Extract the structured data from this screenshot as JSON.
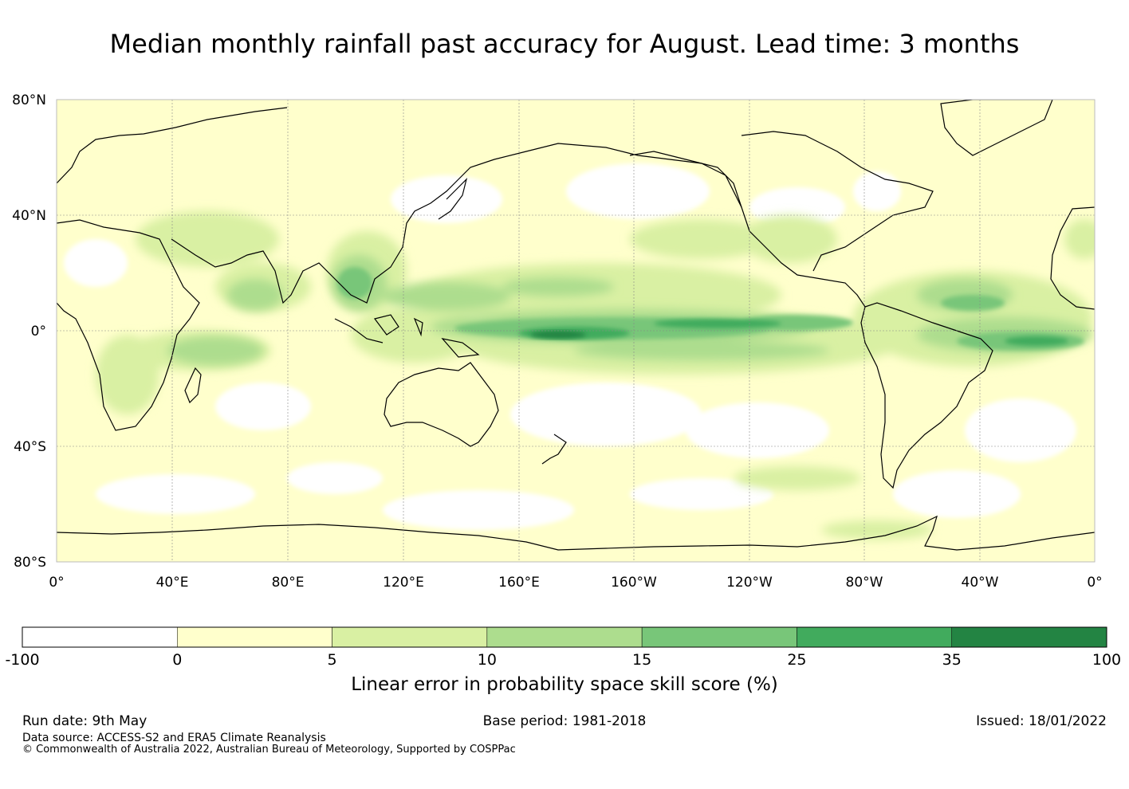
{
  "title": "Median monthly rainfall past accuracy for August. Lead time: 3 months",
  "map": {
    "lat_labels": [
      "80°N",
      "40°N",
      "0°",
      "40°S",
      "80°S"
    ],
    "lon_labels": [
      "0°",
      "40°E",
      "80°E",
      "120°E",
      "160°E",
      "160°W",
      "120°W",
      "80°W",
      "40°W",
      "0°"
    ]
  },
  "colorbar": {
    "title": "Linear error in probability space skill score (%)",
    "ticks": [
      "-100",
      "0",
      "5",
      "10",
      "15",
      "25",
      "35",
      "100"
    ],
    "colors": [
      "#ffffff",
      "#ffffcc",
      "#d9f0a3",
      "#addd8e",
      "#78c679",
      "#41ab5d",
      "#238443"
    ]
  },
  "footer": {
    "run_date": "Run date: 9th May",
    "base_period": "Base period: 1981-2018",
    "issued": "Issued: 18/01/2022",
    "data_source": "Data source: ACCESS-S2 and ERA5 Climate Reanalysis",
    "copyright": "© Commonwealth of Australia 2022, Australian Bureau of Meteorology, Supported by COSPPac"
  }
}
